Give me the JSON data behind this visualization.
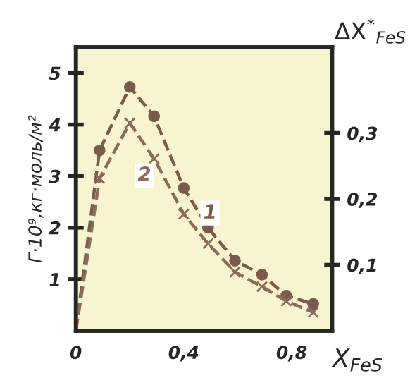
{
  "chart_data": {
    "type": "line",
    "xlabel": "X$_{FeS}$",
    "ylabel": "Г·10⁹,кг·моль/м²",
    "y2label": "ΔX$^{*}$$_{FeS}$",
    "xlim": [
      0,
      0.95
    ],
    "xticks": [
      0,
      {
        "value": 0.4,
        "label": "0,4"
      },
      {
        "value": 0.8,
        "label": "0,8"
      }
    ],
    "ylim": [
      0,
      5.5
    ],
    "yticks": [
      1,
      2,
      3,
      4,
      5
    ],
    "y2lim": [
      0,
      0.43
    ],
    "y2ticks": [
      {
        "value": 0.1,
        "label": "0,1"
      },
      {
        "value": 0.2,
        "label": "0,2"
      },
      {
        "value": 0.3,
        "label": "0,3"
      }
    ],
    "grid": false,
    "legend": false,
    "series": [
      {
        "name": "1",
        "color": "#7a5a4a",
        "marker": "circle",
        "line_style": "dashed",
        "x": [
          0,
          0.088,
          0.2,
          0.29,
          0.4,
          0.49,
          0.59,
          0.69,
          0.78,
          0.88
        ],
        "values": [
          0,
          3.5,
          4.73,
          4.16,
          2.77,
          2.0,
          1.36,
          1.09,
          0.68,
          0.52
        ]
      },
      {
        "name": "2",
        "color": "#8a6a5a",
        "marker": "cross",
        "line_style": "dashed",
        "axis": "y2",
        "x": [
          0,
          0.088,
          0.2,
          0.29,
          0.4,
          0.49,
          0.59,
          0.69,
          0.78,
          0.88
        ],
        "values": [
          0,
          0.231,
          0.315,
          0.261,
          0.177,
          0.132,
          0.089,
          0.067,
          0.045,
          0.028
        ]
      }
    ]
  }
}
